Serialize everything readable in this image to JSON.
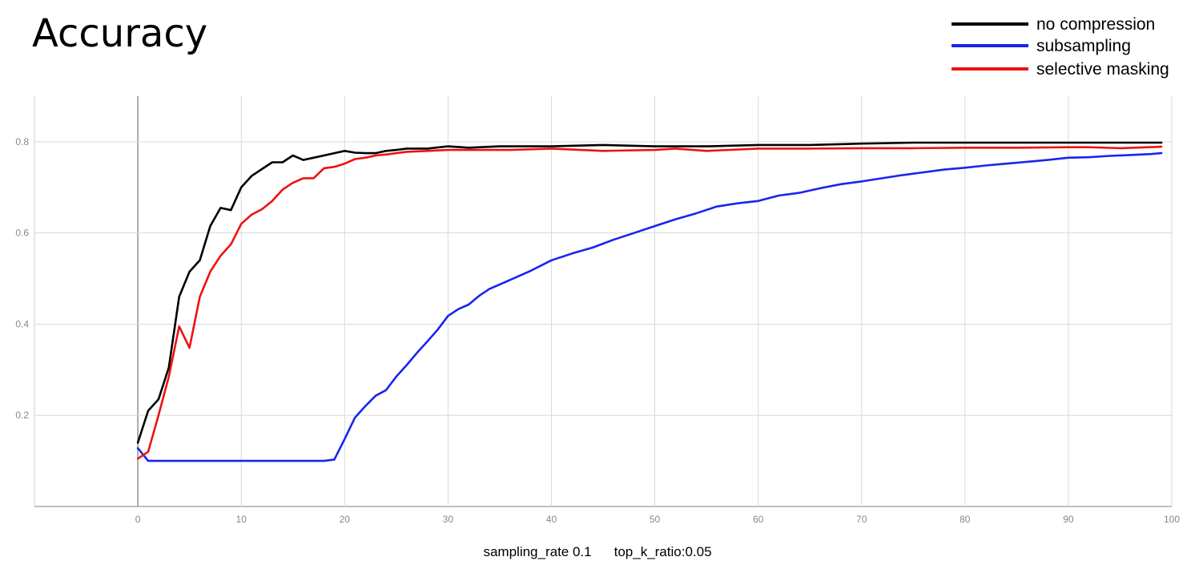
{
  "chart_data": {
    "type": "line",
    "title": "Accuracy",
    "caption": [
      "sampling_rate 0.1",
      "top_k_ratio:0.05"
    ],
    "xlim": [
      -10,
      100
    ],
    "ylim": [
      0,
      0.9
    ],
    "x_ticks": [
      0,
      10,
      20,
      30,
      40,
      50,
      60,
      70,
      80,
      90,
      100
    ],
    "y_ticks": [
      0.2,
      0.4,
      0.6,
      0.8
    ],
    "grid": true,
    "legend_position": "top-right",
    "series": [
      {
        "name": "no compression",
        "color": "#000000",
        "x": [
          0,
          1,
          2,
          3,
          4,
          5,
          6,
          7,
          8,
          9,
          10,
          11,
          12,
          13,
          14,
          15,
          16,
          17,
          18,
          19,
          20,
          21,
          22,
          23,
          24,
          25,
          26,
          28,
          30,
          32,
          35,
          40,
          45,
          50,
          55,
          60,
          65,
          70,
          75,
          80,
          85,
          90,
          95,
          99
        ],
        "y": [
          0.14,
          0.21,
          0.235,
          0.305,
          0.46,
          0.515,
          0.54,
          0.615,
          0.655,
          0.65,
          0.7,
          0.725,
          0.74,
          0.755,
          0.755,
          0.77,
          0.76,
          0.765,
          0.77,
          0.775,
          0.78,
          0.776,
          0.775,
          0.775,
          0.78,
          0.782,
          0.785,
          0.785,
          0.79,
          0.787,
          0.79,
          0.79,
          0.793,
          0.79,
          0.79,
          0.793,
          0.793,
          0.796,
          0.798,
          0.798,
          0.798,
          0.798,
          0.798,
          0.798
        ]
      },
      {
        "name": "subsampling",
        "color": "#1a24ee",
        "x": [
          0,
          1,
          2,
          5,
          10,
          15,
          18,
          19,
          20,
          21,
          22,
          23,
          24,
          25,
          26,
          27,
          28,
          29,
          30,
          31,
          32,
          33,
          34,
          36,
          38,
          40,
          42,
          44,
          46,
          48,
          50,
          52,
          54,
          56,
          58,
          60,
          62,
          64,
          66,
          68,
          70,
          72,
          74,
          76,
          78,
          80,
          82,
          84,
          86,
          88,
          90,
          92,
          94,
          96,
          98,
          99
        ],
        "y": [
          0.128,
          0.1,
          0.1,
          0.1,
          0.1,
          0.1,
          0.1,
          0.103,
          0.148,
          0.195,
          0.22,
          0.243,
          0.255,
          0.285,
          0.31,
          0.337,
          0.362,
          0.388,
          0.418,
          0.433,
          0.443,
          0.462,
          0.477,
          0.497,
          0.517,
          0.54,
          0.555,
          0.568,
          0.585,
          0.6,
          0.615,
          0.63,
          0.643,
          0.658,
          0.665,
          0.67,
          0.682,
          0.688,
          0.698,
          0.707,
          0.713,
          0.72,
          0.727,
          0.733,
          0.739,
          0.743,
          0.748,
          0.752,
          0.756,
          0.76,
          0.765,
          0.766,
          0.769,
          0.771,
          0.773,
          0.775
        ]
      },
      {
        "name": "selective masking",
        "color": "#ee1111",
        "x": [
          0,
          1,
          2,
          3,
          4,
          5,
          6,
          7,
          8,
          9,
          10,
          11,
          12,
          13,
          14,
          15,
          16,
          17,
          18,
          19,
          20,
          21,
          22,
          23,
          24,
          25,
          26,
          28,
          30,
          32,
          34,
          36,
          40,
          45,
          50,
          52,
          55,
          60,
          65,
          70,
          75,
          80,
          85,
          90,
          92,
          95,
          99
        ],
        "y": [
          0.105,
          0.12,
          0.2,
          0.285,
          0.395,
          0.348,
          0.46,
          0.515,
          0.55,
          0.575,
          0.62,
          0.64,
          0.652,
          0.67,
          0.695,
          0.71,
          0.72,
          0.72,
          0.742,
          0.745,
          0.752,
          0.762,
          0.765,
          0.77,
          0.772,
          0.775,
          0.778,
          0.78,
          0.782,
          0.782,
          0.782,
          0.782,
          0.785,
          0.78,
          0.782,
          0.785,
          0.78,
          0.785,
          0.785,
          0.786,
          0.786,
          0.787,
          0.787,
          0.788,
          0.788,
          0.786,
          0.789
        ]
      }
    ]
  }
}
